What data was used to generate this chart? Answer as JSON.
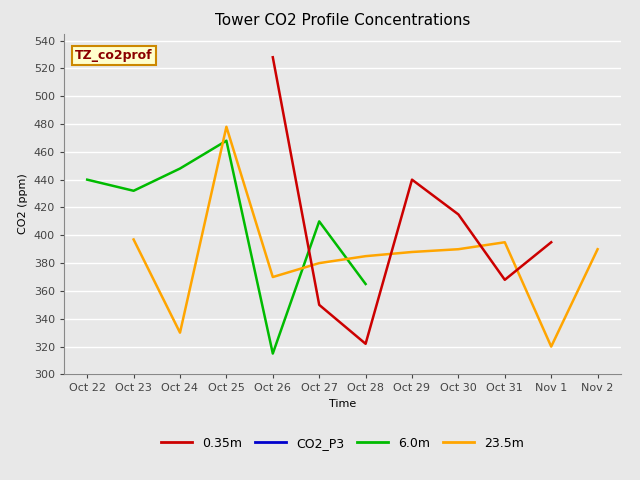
{
  "title": "Tower CO2 Profile Concentrations",
  "xlabel": "Time",
  "ylabel": "CO2 (ppm)",
  "ylim": [
    300,
    545
  ],
  "yticks": [
    300,
    320,
    340,
    360,
    380,
    400,
    420,
    440,
    460,
    480,
    500,
    520,
    540
  ],
  "x_labels": [
    "Oct 22",
    "Oct 23",
    "Oct 24",
    "Oct 25",
    "Oct 26",
    "Oct 27",
    "Oct 28",
    "Oct 29",
    "Oct 30",
    "Oct 31",
    "Nov 1",
    "Nov 2"
  ],
  "annotation_text": "TZ_co2prof",
  "annotation_color": "#8B0000",
  "annotation_bg": "#FFFFCC",
  "annotation_border": "#CC8800",
  "series": {
    "0.35m": {
      "color": "#CC0000",
      "x": [
        4,
        5,
        6,
        7,
        8,
        9,
        10
      ],
      "y": [
        528,
        350,
        322,
        440,
        415,
        368,
        395
      ]
    },
    "CO2_P3": {
      "color": "#0000CC",
      "x": [],
      "y": []
    },
    "6.0m": {
      "color": "#00BB00",
      "x": [
        0,
        1,
        2,
        3,
        4,
        5,
        6
      ],
      "y": [
        440,
        432,
        448,
        468,
        315,
        410,
        365
      ]
    },
    "23.5m": {
      "color": "#FFA500",
      "x": [
        1,
        2,
        3,
        4,
        5,
        6,
        7,
        8,
        9,
        10,
        11
      ],
      "y": [
        397,
        330,
        478,
        370,
        380,
        385,
        388,
        390,
        395,
        320,
        390
      ]
    }
  },
  "fig_bg": "#E8E8E8",
  "plot_bg": "#E8E8E8",
  "grid_color": "#FFFFFF",
  "title_fontsize": 11,
  "axis_fontsize": 8,
  "legend_fontsize": 9
}
